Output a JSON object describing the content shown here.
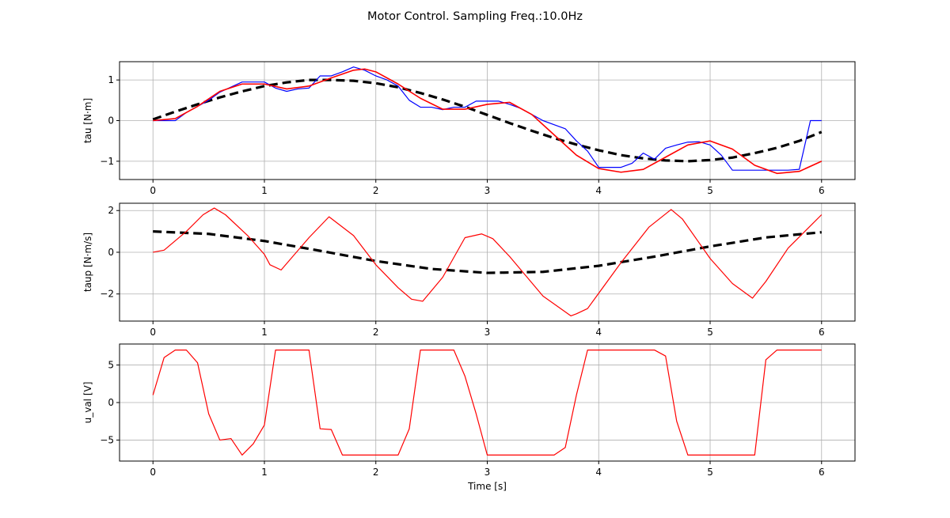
{
  "figure": {
    "title": "Motor Control. Sampling Freq.:10.0Hz"
  },
  "chart_data": [
    {
      "type": "line",
      "ylabel": "tau [N·m]",
      "xlabel": "",
      "xlim": [
        -0.3,
        6.3
      ],
      "ylim": [
        -1.45,
        1.45
      ],
      "xticks": [
        0,
        1,
        2,
        3,
        4,
        5,
        6
      ],
      "yticks": [
        -1,
        0,
        1
      ],
      "grid": true,
      "series": [
        {
          "style": "dashed",
          "color": "#000000",
          "x": [
            0,
            0.2,
            0.4,
            0.6,
            0.8,
            1.0,
            1.2,
            1.4,
            1.6,
            1.8,
            2.0,
            2.2,
            2.4,
            2.6,
            2.8,
            3.0,
            3.2,
            3.4,
            3.6,
            3.8,
            4.0,
            4.2,
            4.4,
            4.6,
            4.8,
            5.0,
            5.2,
            5.4,
            5.6,
            5.8,
            6.0
          ],
          "y": [
            0.03,
            0.22,
            0.4,
            0.57,
            0.72,
            0.85,
            0.94,
            1.0,
            1.0,
            0.98,
            0.92,
            0.82,
            0.68,
            0.52,
            0.34,
            0.14,
            -0.06,
            -0.25,
            -0.43,
            -0.59,
            -0.73,
            -0.85,
            -0.93,
            -0.98,
            -1.0,
            -0.97,
            -0.91,
            -0.8,
            -0.67,
            -0.5,
            -0.28
          ]
        },
        {
          "style": "solid",
          "color": "#0000ff",
          "x": [
            0,
            0.2,
            0.3,
            0.5,
            0.6,
            0.8,
            1.0,
            1.1,
            1.2,
            1.3,
            1.4,
            1.5,
            1.6,
            1.7,
            1.8,
            1.9,
            2.0,
            2.1,
            2.2,
            2.3,
            2.4,
            2.5,
            2.6,
            2.7,
            2.8,
            2.9,
            3.0,
            3.1,
            3.2,
            3.3,
            3.4,
            3.5,
            3.6,
            3.7,
            3.8,
            3.9,
            4.0,
            4.1,
            4.2,
            4.3,
            4.4,
            4.5,
            4.6,
            4.7,
            4.8,
            4.9,
            5.0,
            5.1,
            5.2,
            5.3,
            5.4,
            5.5,
            5.6,
            5.7,
            5.8,
            5.9,
            6.0
          ],
          "y": [
            0.0,
            0.0,
            0.2,
            0.5,
            0.7,
            0.95,
            0.95,
            0.8,
            0.72,
            0.78,
            0.8,
            1.1,
            1.1,
            1.2,
            1.32,
            1.24,
            1.1,
            1.0,
            0.85,
            0.5,
            0.33,
            0.33,
            0.27,
            0.33,
            0.33,
            0.48,
            0.48,
            0.48,
            0.4,
            0.3,
            0.15,
            0.0,
            -0.1,
            -0.2,
            -0.5,
            -0.75,
            -1.15,
            -1.15,
            -1.15,
            -1.05,
            -0.8,
            -0.95,
            -0.68,
            -0.6,
            -0.53,
            -0.52,
            -0.6,
            -0.85,
            -1.22,
            -1.22,
            -1.22,
            -1.22,
            -1.22,
            -1.22,
            -1.2,
            0.0,
            0.0
          ]
        },
        {
          "style": "solid",
          "color": "#ff0000",
          "x": [
            0,
            0.2,
            0.4,
            0.6,
            0.8,
            1.0,
            1.2,
            1.4,
            1.6,
            1.8,
            1.9,
            2.0,
            2.2,
            2.4,
            2.6,
            2.8,
            3.0,
            3.2,
            3.4,
            3.6,
            3.8,
            4.0,
            4.2,
            4.4,
            4.6,
            4.8,
            5.0,
            5.2,
            5.4,
            5.6,
            5.8,
            6.0
          ],
          "y": [
            0.0,
            0.05,
            0.35,
            0.72,
            0.9,
            0.9,
            0.78,
            0.85,
            1.05,
            1.24,
            1.27,
            1.2,
            0.9,
            0.55,
            0.28,
            0.28,
            0.4,
            0.45,
            0.15,
            -0.35,
            -0.85,
            -1.18,
            -1.27,
            -1.2,
            -0.9,
            -0.6,
            -0.5,
            -0.7,
            -1.1,
            -1.3,
            -1.25,
            -1.0
          ]
        }
      ]
    },
    {
      "type": "line",
      "ylabel": "taup [N·m/s]",
      "xlabel": "",
      "xlim": [
        -0.3,
        6.3
      ],
      "ylim": [
        -3.3,
        2.35
      ],
      "xticks": [
        0,
        1,
        2,
        3,
        4,
        5,
        6
      ],
      "yticks": [
        -2,
        0,
        2
      ],
      "grid": true,
      "series": [
        {
          "style": "dashed",
          "color": "#000000",
          "x": [
            0,
            0.5,
            1.0,
            1.5,
            2.0,
            2.5,
            3.0,
            3.5,
            4.0,
            4.5,
            5.0,
            5.5,
            6.0
          ],
          "y": [
            1.0,
            0.88,
            0.54,
            0.07,
            -0.42,
            -0.8,
            -0.99,
            -0.94,
            -0.65,
            -0.21,
            0.28,
            0.71,
            0.96
          ]
        },
        {
          "style": "solid",
          "color": "#ff0000",
          "x": [
            0,
            0.1,
            0.3,
            0.45,
            0.55,
            0.65,
            0.85,
            1.0,
            1.05,
            1.15,
            1.4,
            1.58,
            1.8,
            2.0,
            2.2,
            2.32,
            2.42,
            2.6,
            2.8,
            2.95,
            3.05,
            3.2,
            3.5,
            3.75,
            3.8,
            3.9,
            4.2,
            4.45,
            4.65,
            4.75,
            5.0,
            5.2,
            5.38,
            5.5,
            5.7,
            6.0
          ],
          "y": [
            0.0,
            0.1,
            1.0,
            1.8,
            2.12,
            1.8,
            0.8,
            -0.1,
            -0.6,
            -0.85,
            0.7,
            1.7,
            0.8,
            -0.6,
            -1.7,
            -2.25,
            -2.35,
            -1.2,
            0.7,
            0.88,
            0.65,
            -0.2,
            -2.1,
            -3.05,
            -2.95,
            -2.7,
            -0.5,
            1.2,
            2.05,
            1.6,
            -0.3,
            -1.5,
            -2.2,
            -1.4,
            0.2,
            1.8
          ]
        }
      ]
    },
    {
      "type": "line",
      "ylabel": "u_val [V]",
      "xlabel": "Time [s]",
      "xlim": [
        -0.3,
        6.3
      ],
      "ylim": [
        -7.8,
        7.8
      ],
      "xticks": [
        0,
        1,
        2,
        3,
        4,
        5,
        6
      ],
      "yticks": [
        -5,
        0,
        5
      ],
      "grid": true,
      "series": [
        {
          "style": "solid",
          "color": "#ff0000",
          "x": [
            0,
            0.1,
            0.2,
            0.3,
            0.4,
            0.5,
            0.6,
            0.7,
            0.8,
            0.9,
            1.0,
            1.1,
            1.2,
            1.3,
            1.4,
            1.5,
            1.6,
            1.7,
            1.8,
            1.9,
            2.0,
            2.1,
            2.2,
            2.3,
            2.4,
            2.5,
            2.6,
            2.7,
            2.8,
            2.9,
            3.0,
            3.1,
            3.2,
            3.3,
            3.4,
            3.5,
            3.6,
            3.7,
            3.8,
            3.9,
            4.0,
            4.1,
            4.2,
            4.3,
            4.4,
            4.5,
            4.6,
            4.7,
            4.8,
            4.9,
            5.0,
            5.1,
            5.2,
            5.3,
            5.4,
            5.5,
            5.6,
            5.7,
            5.8,
            5.9,
            6.0
          ],
          "y": [
            1.0,
            6.0,
            7.0,
            7.0,
            5.3,
            -1.5,
            -5.0,
            -4.8,
            -7.0,
            -5.5,
            -3.0,
            7.0,
            7.0,
            7.0,
            7.0,
            -3.5,
            -3.6,
            -7.0,
            -7.0,
            -7.0,
            -7.0,
            -7.0,
            -7.0,
            -3.5,
            7.0,
            7.0,
            7.0,
            7.0,
            3.5,
            -1.5,
            -7.0,
            -7.0,
            -7.0,
            -7.0,
            -7.0,
            -7.0,
            -7.0,
            -6.0,
            1.0,
            7.0,
            7.0,
            7.0,
            7.0,
            7.0,
            7.0,
            7.0,
            6.2,
            -2.5,
            -7.0,
            -7.0,
            -7.0,
            -7.0,
            -7.0,
            -7.0,
            -7.0,
            5.7,
            7.0,
            7.0,
            7.0,
            7.0,
            7.0
          ]
        }
      ]
    }
  ]
}
